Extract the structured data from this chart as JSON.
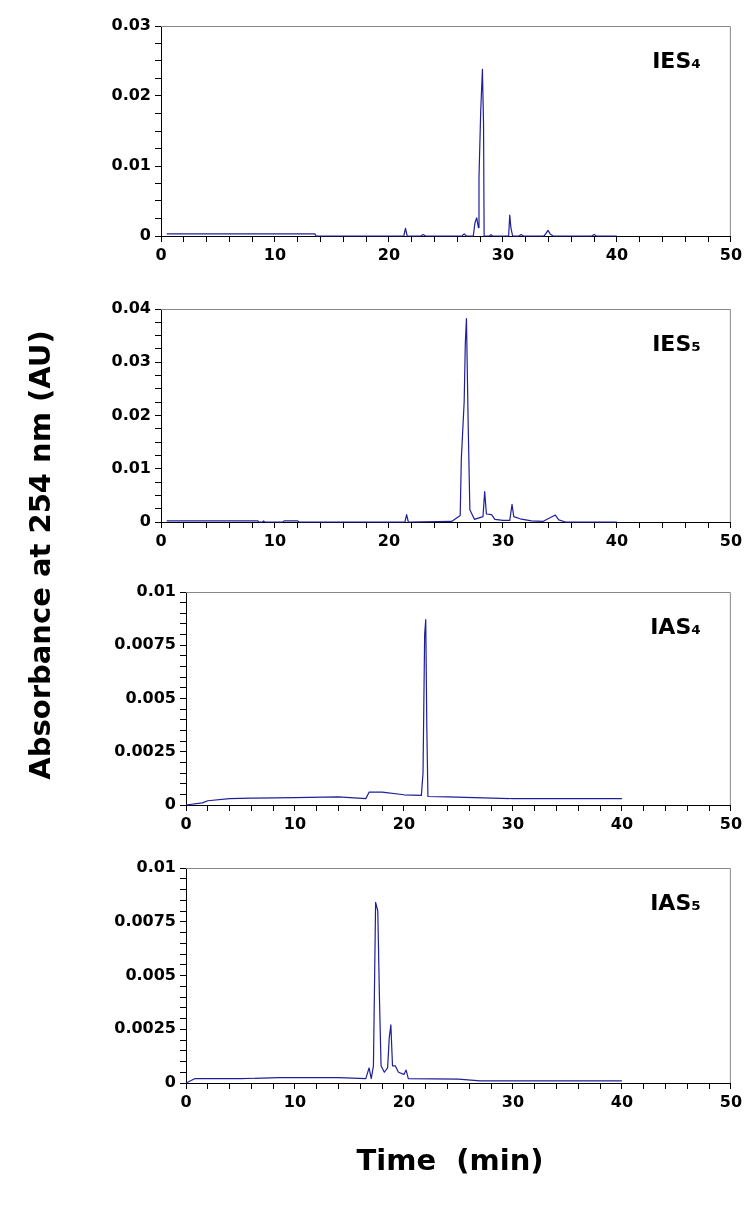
{
  "chart_data": [
    {
      "type": "line",
      "title": "IES₄",
      "ylabel": "Absorbance at 254 nm (AU)",
      "color": "#1f1f99",
      "grid": false,
      "x": [
        0.5,
        13.5,
        13.6,
        21.3,
        21.45,
        21.6,
        22.8,
        23.0,
        23.2,
        26.4,
        26.6,
        26.8,
        27.4,
        27.55,
        27.7,
        27.85,
        27.9,
        28.05,
        28.2,
        28.3,
        28.35,
        28.8,
        28.95,
        29.1,
        30.5,
        30.6,
        30.7,
        30.85,
        31.4,
        31.6,
        31.8,
        33.6,
        33.75,
        33.95,
        34.15,
        34.4,
        37.8,
        38.0,
        38.2,
        40.0
      ],
      "values": [
        0.0003,
        0.0003,
        0,
        0,
        0.0011,
        0,
        0,
        0.0002,
        0,
        0,
        0.0003,
        0,
        0,
        0.0019,
        0.0026,
        0.0012,
        0.0083,
        0.0178,
        0.0238,
        0.016,
        0,
        0,
        0.0002,
        0,
        0,
        0.003,
        0.0012,
        0,
        0,
        0.0002,
        0,
        0,
        0.0003,
        0.0008,
        0.0003,
        0,
        0,
        0.0002,
        0,
        0
      ],
      "xlim": [
        0,
        50
      ],
      "xticks": [
        0,
        {
          "value": 2,
          "label": null
        },
        {
          "value": 4,
          "label": null
        },
        {
          "value": 6,
          "label": null
        },
        {
          "value": 8,
          "label": null
        },
        10,
        {
          "value": 12,
          "label": null
        },
        {
          "value": 14,
          "label": null
        },
        {
          "value": 16,
          "label": null
        },
        {
          "value": 18,
          "label": null
        },
        20,
        {
          "value": 22,
          "label": null
        },
        {
          "value": 24,
          "label": null
        },
        {
          "value": 26,
          "label": null
        },
        {
          "value": 28,
          "label": null
        },
        30,
        {
          "value": 32,
          "label": null
        },
        {
          "value": 34,
          "label": null
        },
        {
          "value": 36,
          "label": null
        },
        {
          "value": 38,
          "label": null
        },
        40,
        {
          "value": 42,
          "label": null
        },
        {
          "value": 44,
          "label": null
        },
        {
          "value": 46,
          "label": null
        },
        {
          "value": 48,
          "label": null
        },
        50
      ],
      "ylim": [
        0,
        0.03
      ],
      "yticks": [
        0,
        {
          "value": 0.0025,
          "label": null
        },
        {
          "value": 0.005,
          "label": null
        },
        {
          "value": 0.0075,
          "label": null
        },
        0.01,
        {
          "value": 0.0125,
          "label": null
        },
        {
          "value": 0.015,
          "label": null
        },
        {
          "value": 0.0175,
          "label": null
        },
        0.02,
        {
          "value": 0.0225,
          "label": null
        },
        {
          "value": 0.025,
          "label": null
        },
        {
          "value": 0.0275,
          "label": null
        },
        0.03
      ]
    },
    {
      "type": "line",
      "title": "IES₅",
      "color": "#1f1f99",
      "grid": false,
      "x": [
        0.5,
        8.5,
        8.6,
        8.9,
        9.0,
        9.1,
        10.7,
        10.8,
        12.0,
        12.1,
        21.4,
        21.55,
        21.7,
        25.5,
        26.25,
        26.35,
        26.6,
        26.7,
        26.8,
        26.95,
        27.1,
        27.5,
        28.25,
        28.4,
        28.55,
        29.0,
        29.3,
        30.0,
        30.6,
        30.8,
        30.95,
        31.5,
        32.5,
        33.5,
        34.6,
        34.9,
        35.5,
        40.0
      ],
      "values": [
        0.0002,
        0.0002,
        0,
        0,
        0.0002,
        0,
        0,
        0.0002,
        0.0002,
        0,
        0,
        0.0014,
        0,
        0.0001,
        0.0012,
        0.0118,
        0.0226,
        0.0335,
        0.0382,
        0.0185,
        0.0023,
        0.0005,
        0.001,
        0.0057,
        0.0015,
        0.0014,
        0.0005,
        0.0003,
        0.0003,
        0.0033,
        0.001,
        0.0006,
        0.0002,
        0.0001,
        0.0013,
        0.0004,
        0,
        0
      ],
      "xlim": [
        0,
        50
      ],
      "xticks": [
        0,
        {
          "value": 2,
          "label": null
        },
        {
          "value": 4,
          "label": null
        },
        {
          "value": 6,
          "label": null
        },
        {
          "value": 8,
          "label": null
        },
        10,
        {
          "value": 12,
          "label": null
        },
        {
          "value": 14,
          "label": null
        },
        {
          "value": 16,
          "label": null
        },
        {
          "value": 18,
          "label": null
        },
        20,
        {
          "value": 22,
          "label": null
        },
        {
          "value": 24,
          "label": null
        },
        {
          "value": 26,
          "label": null
        },
        {
          "value": 28,
          "label": null
        },
        30,
        {
          "value": 32,
          "label": null
        },
        {
          "value": 34,
          "label": null
        },
        {
          "value": 36,
          "label": null
        },
        {
          "value": 38,
          "label": null
        },
        40,
        {
          "value": 42,
          "label": null
        },
        {
          "value": 44,
          "label": null
        },
        {
          "value": 46,
          "label": null
        },
        {
          "value": 48,
          "label": null
        },
        50
      ],
      "ylim": [
        0,
        0.04
      ],
      "yticks": [
        0,
        {
          "value": 0.0025,
          "label": null
        },
        {
          "value": 0.005,
          "label": null
        },
        {
          "value": 0.0075,
          "label": null
        },
        0.01,
        {
          "value": 0.0125,
          "label": null
        },
        {
          "value": 0.015,
          "label": null
        },
        {
          "value": 0.0175,
          "label": null
        },
        0.02,
        {
          "value": 0.0225,
          "label": null
        },
        {
          "value": 0.025,
          "label": null
        },
        {
          "value": 0.0275,
          "label": null
        },
        0.03,
        {
          "value": 0.0325,
          "label": null
        },
        {
          "value": 0.035,
          "label": null
        },
        {
          "value": 0.0375,
          "label": null
        },
        0.04
      ]
    },
    {
      "type": "line",
      "title": "IAS₄",
      "color": "#1f1f99",
      "grid": false,
      "x": [
        0,
        1.5,
        2.0,
        4,
        6,
        10,
        14,
        16.5,
        16.8,
        18,
        20,
        21.6,
        21.75,
        21.9,
        22.0,
        22.1,
        22.2,
        24,
        30,
        40
      ],
      "values": [
        0,
        0.0001,
        0.0002,
        0.0003,
        0.00032,
        0.00035,
        0.00038,
        0.0003,
        0.0006,
        0.0006,
        0.00048,
        0.00045,
        0.0015,
        0.008,
        0.0087,
        0.0036,
        0.0004,
        0.00038,
        0.0003,
        0.0003
      ],
      "xlim": [
        0,
        50
      ],
      "xticks": [
        0,
        {
          "value": 2,
          "label": null
        },
        {
          "value": 4,
          "label": null
        },
        {
          "value": 6,
          "label": null
        },
        {
          "value": 8,
          "label": null
        },
        10,
        {
          "value": 12,
          "label": null
        },
        {
          "value": 14,
          "label": null
        },
        {
          "value": 16,
          "label": null
        },
        {
          "value": 18,
          "label": null
        },
        20,
        {
          "value": 22,
          "label": null
        },
        {
          "value": 24,
          "label": null
        },
        {
          "value": 26,
          "label": null
        },
        {
          "value": 28,
          "label": null
        },
        30,
        {
          "value": 32,
          "label": null
        },
        {
          "value": 34,
          "label": null
        },
        {
          "value": 36,
          "label": null
        },
        {
          "value": 38,
          "label": null
        },
        40,
        {
          "value": 42,
          "label": null
        },
        {
          "value": 44,
          "label": null
        },
        {
          "value": 46,
          "label": null
        },
        {
          "value": 48,
          "label": null
        },
        50
      ],
      "ylim": [
        0,
        0.01
      ],
      "yticks": [
        0,
        {
          "value": 0.0005,
          "label": null
        },
        {
          "value": 0.001,
          "label": null
        },
        {
          "value": 0.0015,
          "label": null
        },
        {
          "value": 0.002,
          "label": null
        },
        0.0025,
        {
          "value": 0.003,
          "label": null
        },
        {
          "value": 0.0035,
          "label": null
        },
        {
          "value": 0.004,
          "label": null
        },
        {
          "value": 0.0045,
          "label": null
        },
        0.005,
        {
          "value": 0.0055,
          "label": null
        },
        {
          "value": 0.006,
          "label": null
        },
        {
          "value": 0.0065,
          "label": null
        },
        {
          "value": 0.007,
          "label": null
        },
        0.0075,
        {
          "value": 0.008,
          "label": null
        },
        {
          "value": 0.0085,
          "label": null
        },
        {
          "value": 0.009,
          "label": null
        },
        {
          "value": 0.0095,
          "label": null
        },
        0.01
      ]
    },
    {
      "type": "line",
      "title": "IAS₅",
      "xlabel": "Time  (min)",
      "color": "#1f1f99",
      "grid": false,
      "x": [
        0,
        0.8,
        5,
        8.5,
        14,
        16.5,
        16.8,
        17.0,
        17.2,
        17.4,
        17.6,
        17.75,
        17.9,
        18.2,
        18.5,
        18.65,
        18.8,
        18.95,
        19.2,
        19.5,
        20.0,
        20.2,
        20.4,
        25,
        27,
        30,
        40
      ],
      "values": [
        0,
        0.0002,
        0.0002,
        0.00025,
        0.00025,
        0.0002,
        0.0007,
        0.0002,
        0.0008,
        0.0084,
        0.008,
        0.004,
        0.0008,
        0.0005,
        0.0007,
        0.0021,
        0.0027,
        0.0008,
        0.0008,
        0.0005,
        0.0004,
        0.0006,
        0.0002,
        0.00018,
        0.0001,
        0.0001,
        0.0001
      ],
      "xlim": [
        0,
        50
      ],
      "xticks": [
        0,
        {
          "value": 2,
          "label": null
        },
        {
          "value": 4,
          "label": null
        },
        {
          "value": 6,
          "label": null
        },
        {
          "value": 8,
          "label": null
        },
        10,
        {
          "value": 12,
          "label": null
        },
        {
          "value": 14,
          "label": null
        },
        {
          "value": 16,
          "label": null
        },
        {
          "value": 18,
          "label": null
        },
        20,
        {
          "value": 22,
          "label": null
        },
        {
          "value": 24,
          "label": null
        },
        {
          "value": 26,
          "label": null
        },
        {
          "value": 28,
          "label": null
        },
        30,
        {
          "value": 32,
          "label": null
        },
        {
          "value": 34,
          "label": null
        },
        {
          "value": 36,
          "label": null
        },
        {
          "value": 38,
          "label": null
        },
        40,
        {
          "value": 42,
          "label": null
        },
        {
          "value": 44,
          "label": null
        },
        {
          "value": 46,
          "label": null
        },
        {
          "value": 48,
          "label": null
        },
        50
      ],
      "ylim": [
        0,
        0.01
      ],
      "yticks": [
        0,
        {
          "value": 0.0005,
          "label": null
        },
        {
          "value": 0.001,
          "label": null
        },
        {
          "value": 0.0015,
          "label": null
        },
        {
          "value": 0.002,
          "label": null
        },
        0.0025,
        {
          "value": 0.003,
          "label": null
        },
        {
          "value": 0.0035,
          "label": null
        },
        {
          "value": 0.004,
          "label": null
        },
        {
          "value": 0.0045,
          "label": null
        },
        0.005,
        {
          "value": 0.0055,
          "label": null
        },
        {
          "value": 0.006,
          "label": null
        },
        {
          "value": 0.0065,
          "label": null
        },
        {
          "value": 0.007,
          "label": null
        },
        0.0075,
        {
          "value": 0.008,
          "label": null
        },
        {
          "value": 0.0085,
          "label": null
        },
        {
          "value": 0.009,
          "label": null
        },
        {
          "value": 0.0095,
          "label": null
        },
        0.01
      ]
    }
  ]
}
